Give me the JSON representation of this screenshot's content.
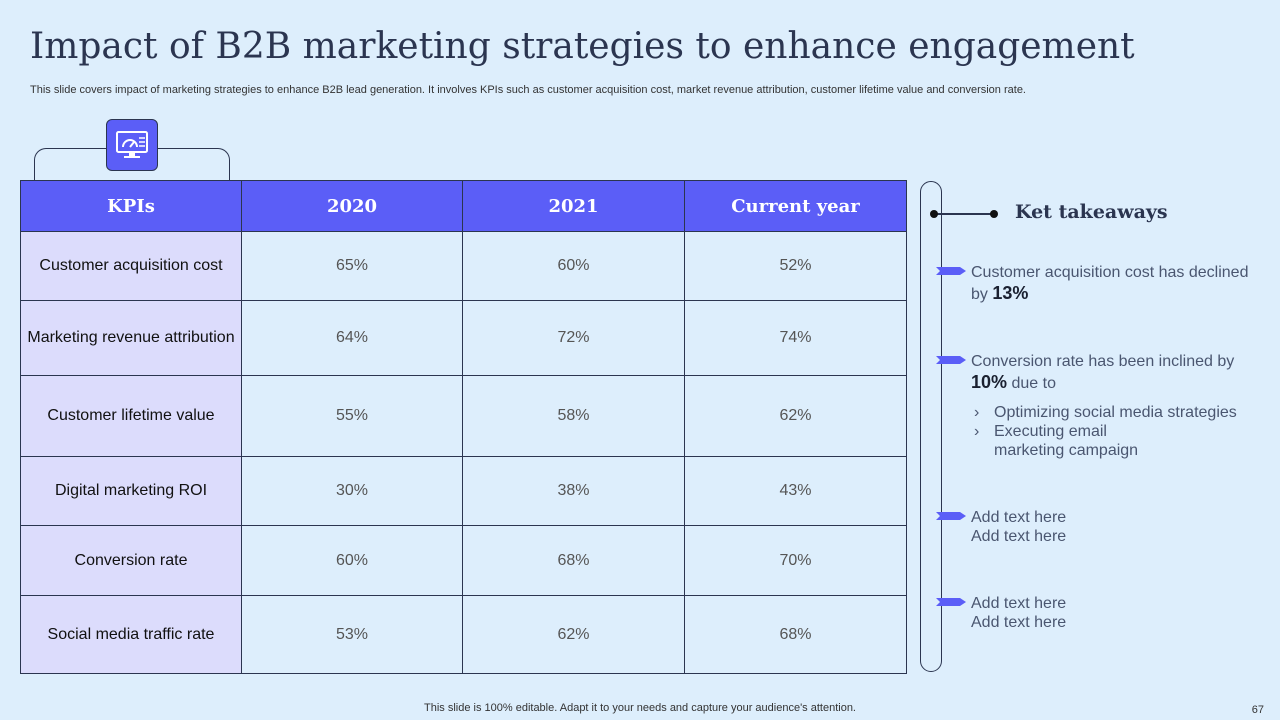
{
  "title": "Impact of B2B marketing strategies to enhance engagement",
  "subtitle": "This slide covers impact of marketing strategies to enhance B2B lead generation. It involves KPIs such as customer acquisition cost, market revenue attribution, customer lifetime value and conversion rate.",
  "icon": "monitor-dashboard-icon",
  "colors": {
    "accent": "#5b5ef7",
    "background": "#ddeefc",
    "kpi_column": "#dcdcfc",
    "dark": "#2b3550"
  },
  "table": {
    "headers": [
      "KPIs",
      "2020",
      "2021",
      "Current year"
    ],
    "rows": [
      [
        "Customer acquisition cost",
        "65%",
        "60%",
        "52%"
      ],
      [
        "Marketing revenue attribution",
        "64%",
        "72%",
        "74%"
      ],
      [
        "Customer lifetime value",
        "55%",
        "58%",
        "62%"
      ],
      [
        "Digital marketing ROI",
        "30%",
        "38%",
        "43%"
      ],
      [
        "Conversion rate",
        "60%",
        "68%",
        "70%"
      ],
      [
        "Social media traffic rate",
        "53%",
        "62%",
        "68%"
      ]
    ]
  },
  "takeaways": {
    "title": "Ket takeaways",
    "items": [
      {
        "text": "Customer acquisition cost has declined by",
        "highlight": "13%"
      },
      {
        "text": "Conversion  rate has been inclined by",
        "highlight": "10%",
        "suffix": "due to",
        "bullets": [
          "Optimizing social media  strategies",
          "Executing email marketing campaign"
        ]
      },
      {
        "line1": "Add text here",
        "line2": "Add text here"
      },
      {
        "line1": "Add text here",
        "line2": "Add text here"
      }
    ]
  },
  "footer": "This slide is 100% editable. Adapt it to your needs and capture your audience's attention.",
  "page_number": "67"
}
